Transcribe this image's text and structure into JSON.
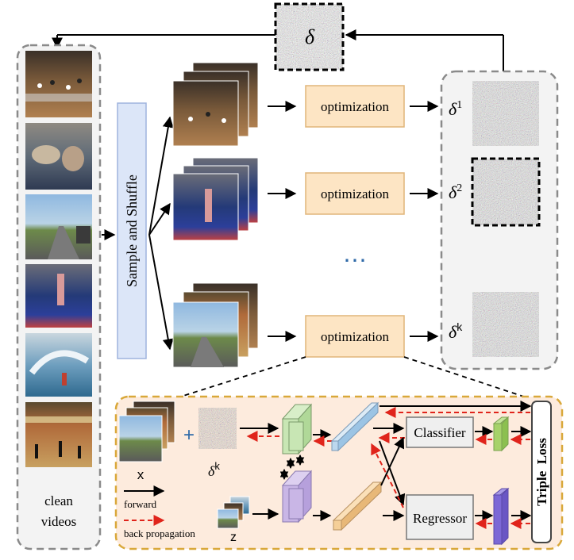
{
  "delta_symbol": "δ",
  "clean_videos_label": [
    "clean",
    "videos"
  ],
  "sample_shuffle_label": "Sample and Shuffle",
  "optimization_labels": [
    "optimization",
    "optimization",
    "optimization"
  ],
  "ellipsis": "⋯",
  "perturbations": [
    {
      "base": "δ",
      "sup": "1"
    },
    {
      "base": "δ",
      "sup": "2"
    },
    {
      "base": "δ",
      "sup": "k"
    }
  ],
  "detail": {
    "plus_sign": "+",
    "x_label": "x",
    "delta_k": {
      "base": "δ",
      "sup": "k"
    },
    "z_label": "z",
    "classifier_label": "Classifier",
    "regressor_label": "Regressor",
    "triple_loss_label": "Triple  Loss",
    "legend": {
      "forward": "forward",
      "back_propagation": "back propagation"
    }
  },
  "colors": {
    "sample_box_fill": "#dce6f8",
    "sample_box_stroke": "#9fb4dd",
    "optimization_fill": "#fde5c4",
    "optimization_stroke": "#e0b57a",
    "detail_fill": "#fdebdd",
    "detail_stroke": "#d9a83a",
    "back_prop": "#e0241b",
    "green_block": "#c8e6b4",
    "purple_block": "#c9b6e6",
    "blue_bar": "#bcd8ee",
    "orange_bar": "#f5cf98",
    "classifier_out": "#a6d26a",
    "regressor_out": "#7c68d6",
    "ellipsis": "#2f6aa8"
  }
}
